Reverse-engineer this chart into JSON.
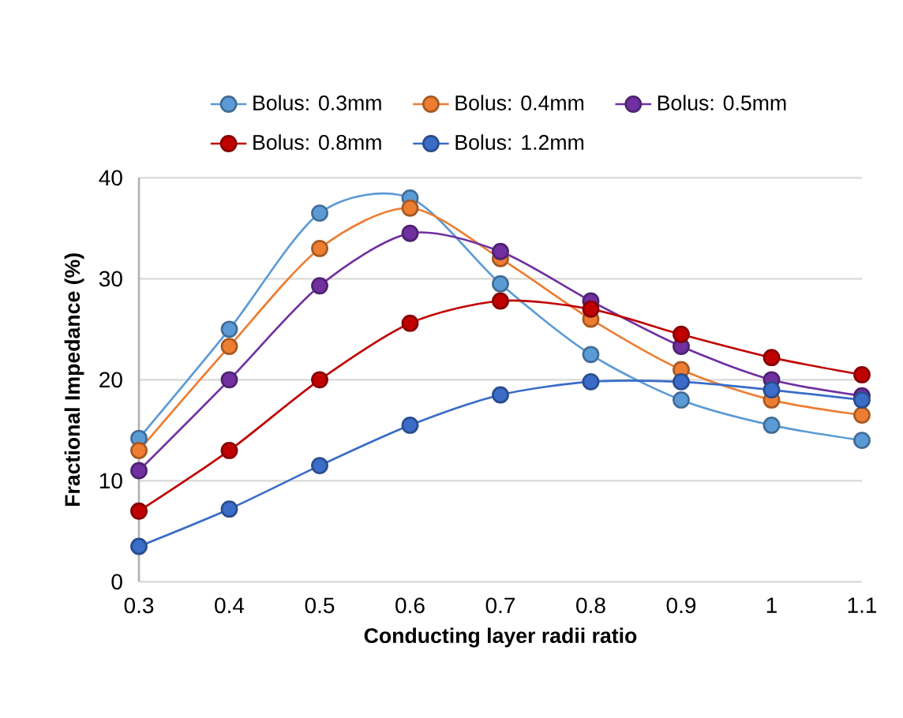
{
  "chart_data": {
    "type": "line",
    "xlabel": "Conducting layer radii ratio",
    "ylabel": "Fractional Impedance (%)",
    "x": [
      0.3,
      0.4,
      0.5,
      0.6,
      0.7,
      0.8,
      0.9,
      1,
      1.1
    ],
    "series": [
      {
        "name": "Bolus: 0.3mm",
        "color": "#5b9bd5",
        "values": [
          14.2,
          25,
          36.5,
          38,
          29.5,
          22.5,
          18,
          15.5,
          14
        ]
      },
      {
        "name": "Bolus: 0.4mm",
        "color": "#ed7d31",
        "values": [
          13,
          23.3,
          33,
          37,
          32,
          26,
          21,
          18,
          16.5
        ]
      },
      {
        "name": "Bolus: 0.5mm",
        "color": "#7030a0",
        "values": [
          11,
          20,
          29.3,
          34.5,
          32.7,
          27.8,
          23.3,
          20,
          18.4
        ]
      },
      {
        "name": "Bolus: 0.8mm",
        "color": "#c00000",
        "values": [
          7,
          13,
          20,
          25.6,
          27.8,
          27,
          24.5,
          22.2,
          20.5
        ]
      },
      {
        "name": "Bolus: 1.2mm",
        "color": "#3a6cc8",
        "values": [
          3.5,
          7.2,
          11.5,
          15.5,
          18.5,
          19.8,
          19.8,
          19,
          18
        ]
      }
    ],
    "xlim": [
      0.3,
      1.1
    ],
    "ylim": [
      0,
      40
    ],
    "xticks": [
      0.3,
      0.4,
      0.5,
      0.6,
      0.7,
      0.8,
      0.9,
      1,
      1.1
    ],
    "yticks": [
      0,
      10,
      20,
      30,
      40
    ],
    "grid": "y",
    "legend": "top",
    "marker": "circle",
    "line_style": "solid"
  }
}
